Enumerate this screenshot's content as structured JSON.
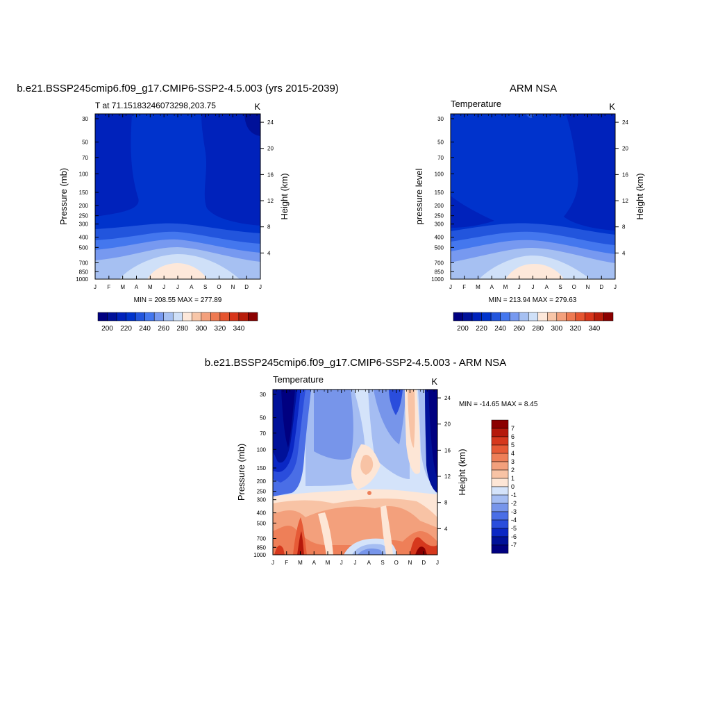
{
  "panels": [
    {
      "title": "b.e21.BSSP245cmip6.f09_g17.CMIP6-SSP2-4.5.003 (yrs 2015-2039)",
      "left_string": "T at 71.15183246073298,203.75",
      "right_string": "K",
      "ylabel_left": "Pressure (mb)",
      "ylabel_right": "Height (km)",
      "minmax": "MIN = 208.55 MAX = 277.89"
    },
    {
      "title": "ARM NSA",
      "left_string": "Temperature",
      "right_string": "K",
      "ylabel_left": "pressure level",
      "ylabel_right": "Height (km)",
      "minmax": "MIN = 213.94 MAX = 279.63"
    },
    {
      "title": "b.e21.BSSP245cmip6.f09_g17.CMIP6-SSP2-4.5.003 - ARM NSA",
      "left_string": "Temperature",
      "right_string": "K",
      "ylabel_left": "Pressure (mb)",
      "ylabel_right": "Height (km)",
      "minmax": "MIN = -14.65 MAX =   8.45"
    }
  ],
  "colors": {
    "temp_scale": [
      "#000080",
      "#001199",
      "#0022bb",
      "#0033cc",
      "#2255dd",
      "#4477ee",
      "#7799f0",
      "#a6c0f2",
      "#cfe0f8",
      "#fde8da",
      "#f8c6a8",
      "#f3a07c",
      "#ee7a52",
      "#e65530",
      "#d8351a",
      "#b81c0a",
      "#8b0000"
    ],
    "diff_scale": [
      "#000080",
      "#001199",
      "#0a27c4",
      "#2a4ddc",
      "#4a6ee6",
      "#7795ea",
      "#a5bdf2",
      "#d4e3fa",
      "#fde6d6",
      "#f8c3a5",
      "#f3a07c",
      "#ee7f58",
      "#e65a36",
      "#d6381d",
      "#b5190b",
      "#8b0000"
    ]
  },
  "chart_data": [
    {
      "type": "heatmap",
      "title": "b.e21.BSSP245cmip6.f09_g17.CMIP6-SSP2-4.5.003 (yrs 2015-2039)",
      "variable": "T at 71.15183246073298,203.75",
      "units": "K",
      "x_ticks": [
        "J",
        "F",
        "M",
        "A",
        "M",
        "J",
        "J",
        "A",
        "S",
        "O",
        "N",
        "D",
        "J"
      ],
      "y_ticks": [
        "30",
        "50",
        "70",
        "100",
        "150",
        "200",
        "250",
        "300",
        "400",
        "500",
        "700",
        "850",
        "1000"
      ],
      "y_scale": "log",
      "ylim": [
        1000,
        27
      ],
      "height_ticks": [
        "24",
        "20",
        "16",
        "12",
        "8",
        "4"
      ],
      "min": 208.55,
      "max": 277.89,
      "colorbar_levels": [
        200,
        205,
        210,
        215,
        220,
        225,
        230,
        235,
        240,
        245,
        250,
        255,
        260,
        265,
        270,
        275,
        280,
        285,
        290,
        295,
        300,
        305,
        310,
        315,
        320,
        325,
        330,
        335,
        340,
        345
      ],
      "colorbar_labels": [
        "200",
        "220",
        "240",
        "260",
        "280",
        "300",
        "320",
        "340"
      ]
    },
    {
      "type": "heatmap",
      "title": "ARM NSA",
      "variable": "Temperature",
      "units": "K",
      "x_ticks": [
        "J",
        "F",
        "M",
        "A",
        "M",
        "J",
        "J",
        "A",
        "S",
        "O",
        "N",
        "D",
        "J"
      ],
      "y_ticks": [
        "30",
        "50",
        "70",
        "100",
        "150",
        "200",
        "250",
        "300",
        "400",
        "500",
        "700",
        "850",
        "1000"
      ],
      "y_scale": "log",
      "ylim": [
        1000,
        27
      ],
      "height_ticks": [
        "24",
        "20",
        "16",
        "12",
        "8",
        "4"
      ],
      "min": 213.94,
      "max": 279.63,
      "colorbar_labels": [
        "200",
        "220",
        "240",
        "260",
        "280",
        "300",
        "320",
        "340"
      ]
    },
    {
      "type": "heatmap",
      "title": "b.e21.BSSP245cmip6.f09_g17.CMIP6-SSP2-4.5.003 - ARM NSA",
      "variable": "Temperature",
      "units": "K",
      "x_ticks": [
        "J",
        "F",
        "M",
        "A",
        "M",
        "J",
        "J",
        "A",
        "S",
        "O",
        "N",
        "D",
        "J"
      ],
      "y_ticks": [
        "30",
        "50",
        "70",
        "100",
        "150",
        "200",
        "250",
        "300",
        "400",
        "500",
        "700",
        "850",
        "1000"
      ],
      "y_scale": "log",
      "ylim": [
        1000,
        27
      ],
      "height_ticks": [
        "24",
        "20",
        "16",
        "12",
        "8",
        "4"
      ],
      "min": -14.65,
      "max": 8.45,
      "colorbar_labels": [
        "7",
        "6",
        "5",
        "4",
        "3",
        "2",
        "1",
        "0",
        "-1",
        "-2",
        "-3",
        "-4",
        "-5",
        "-6",
        "-7"
      ]
    }
  ]
}
